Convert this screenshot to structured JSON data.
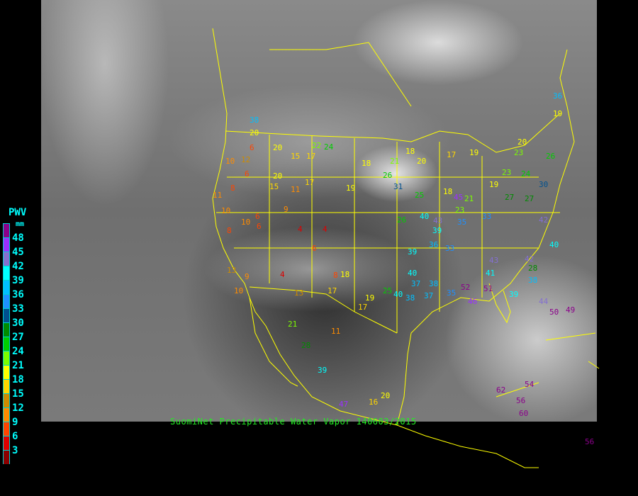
{
  "caption": "SuomiNet Precipitable Water Vapor 140603/2015",
  "legend": {
    "title": "PWV",
    "unit": "mm",
    "labels": [
      "48",
      "45",
      "42",
      "39",
      "36",
      "33",
      "30",
      "27",
      "24",
      "21",
      "18",
      "15",
      "12",
      "9",
      "6",
      "3"
    ],
    "colors": [
      "#8b008b",
      "#9b30ff",
      "#8470d0",
      "#00ffff",
      "#00bfff",
      "#1e90ff",
      "#00508f",
      "#008b00",
      "#00cd00",
      "#7cfc00",
      "#ffff00",
      "#ffd700",
      "#cd8c00",
      "#ff8c00",
      "#ff4500",
      "#dd0000",
      "#8b0000"
    ]
  },
  "stations": [
    "20",
    "6",
    "20",
    "22",
    "18",
    "17",
    "19",
    "15",
    "17",
    "20",
    "24",
    "21",
    "18",
    "20",
    "10",
    "12",
    "6",
    "8",
    "15",
    "11",
    "17",
    "19",
    "6",
    "9",
    "8",
    "10",
    "26",
    "31",
    "25",
    "18",
    "19",
    "21",
    "23",
    "27",
    "33",
    "40",
    "35",
    "36",
    "39",
    "33",
    "39",
    "43",
    "38",
    "40",
    "37",
    "35",
    "38",
    "37",
    "26",
    "25",
    "19",
    "17",
    "10",
    "9",
    "11",
    "13",
    "10",
    "6",
    "4",
    "6",
    "4",
    "8",
    "4",
    "13",
    "18",
    "21",
    "28",
    "39",
    "16",
    "20",
    "17",
    "11",
    "47",
    "62",
    "54",
    "56",
    "60",
    "56",
    "46",
    "44",
    "51",
    "52",
    "50",
    "49",
    "42",
    "41",
    "43",
    "38",
    "39",
    "40",
    "36",
    "19",
    "20",
    "23",
    "26",
    "30",
    "42",
    "45",
    "23",
    "24",
    "27",
    "28",
    "40",
    "38"
  ]
}
